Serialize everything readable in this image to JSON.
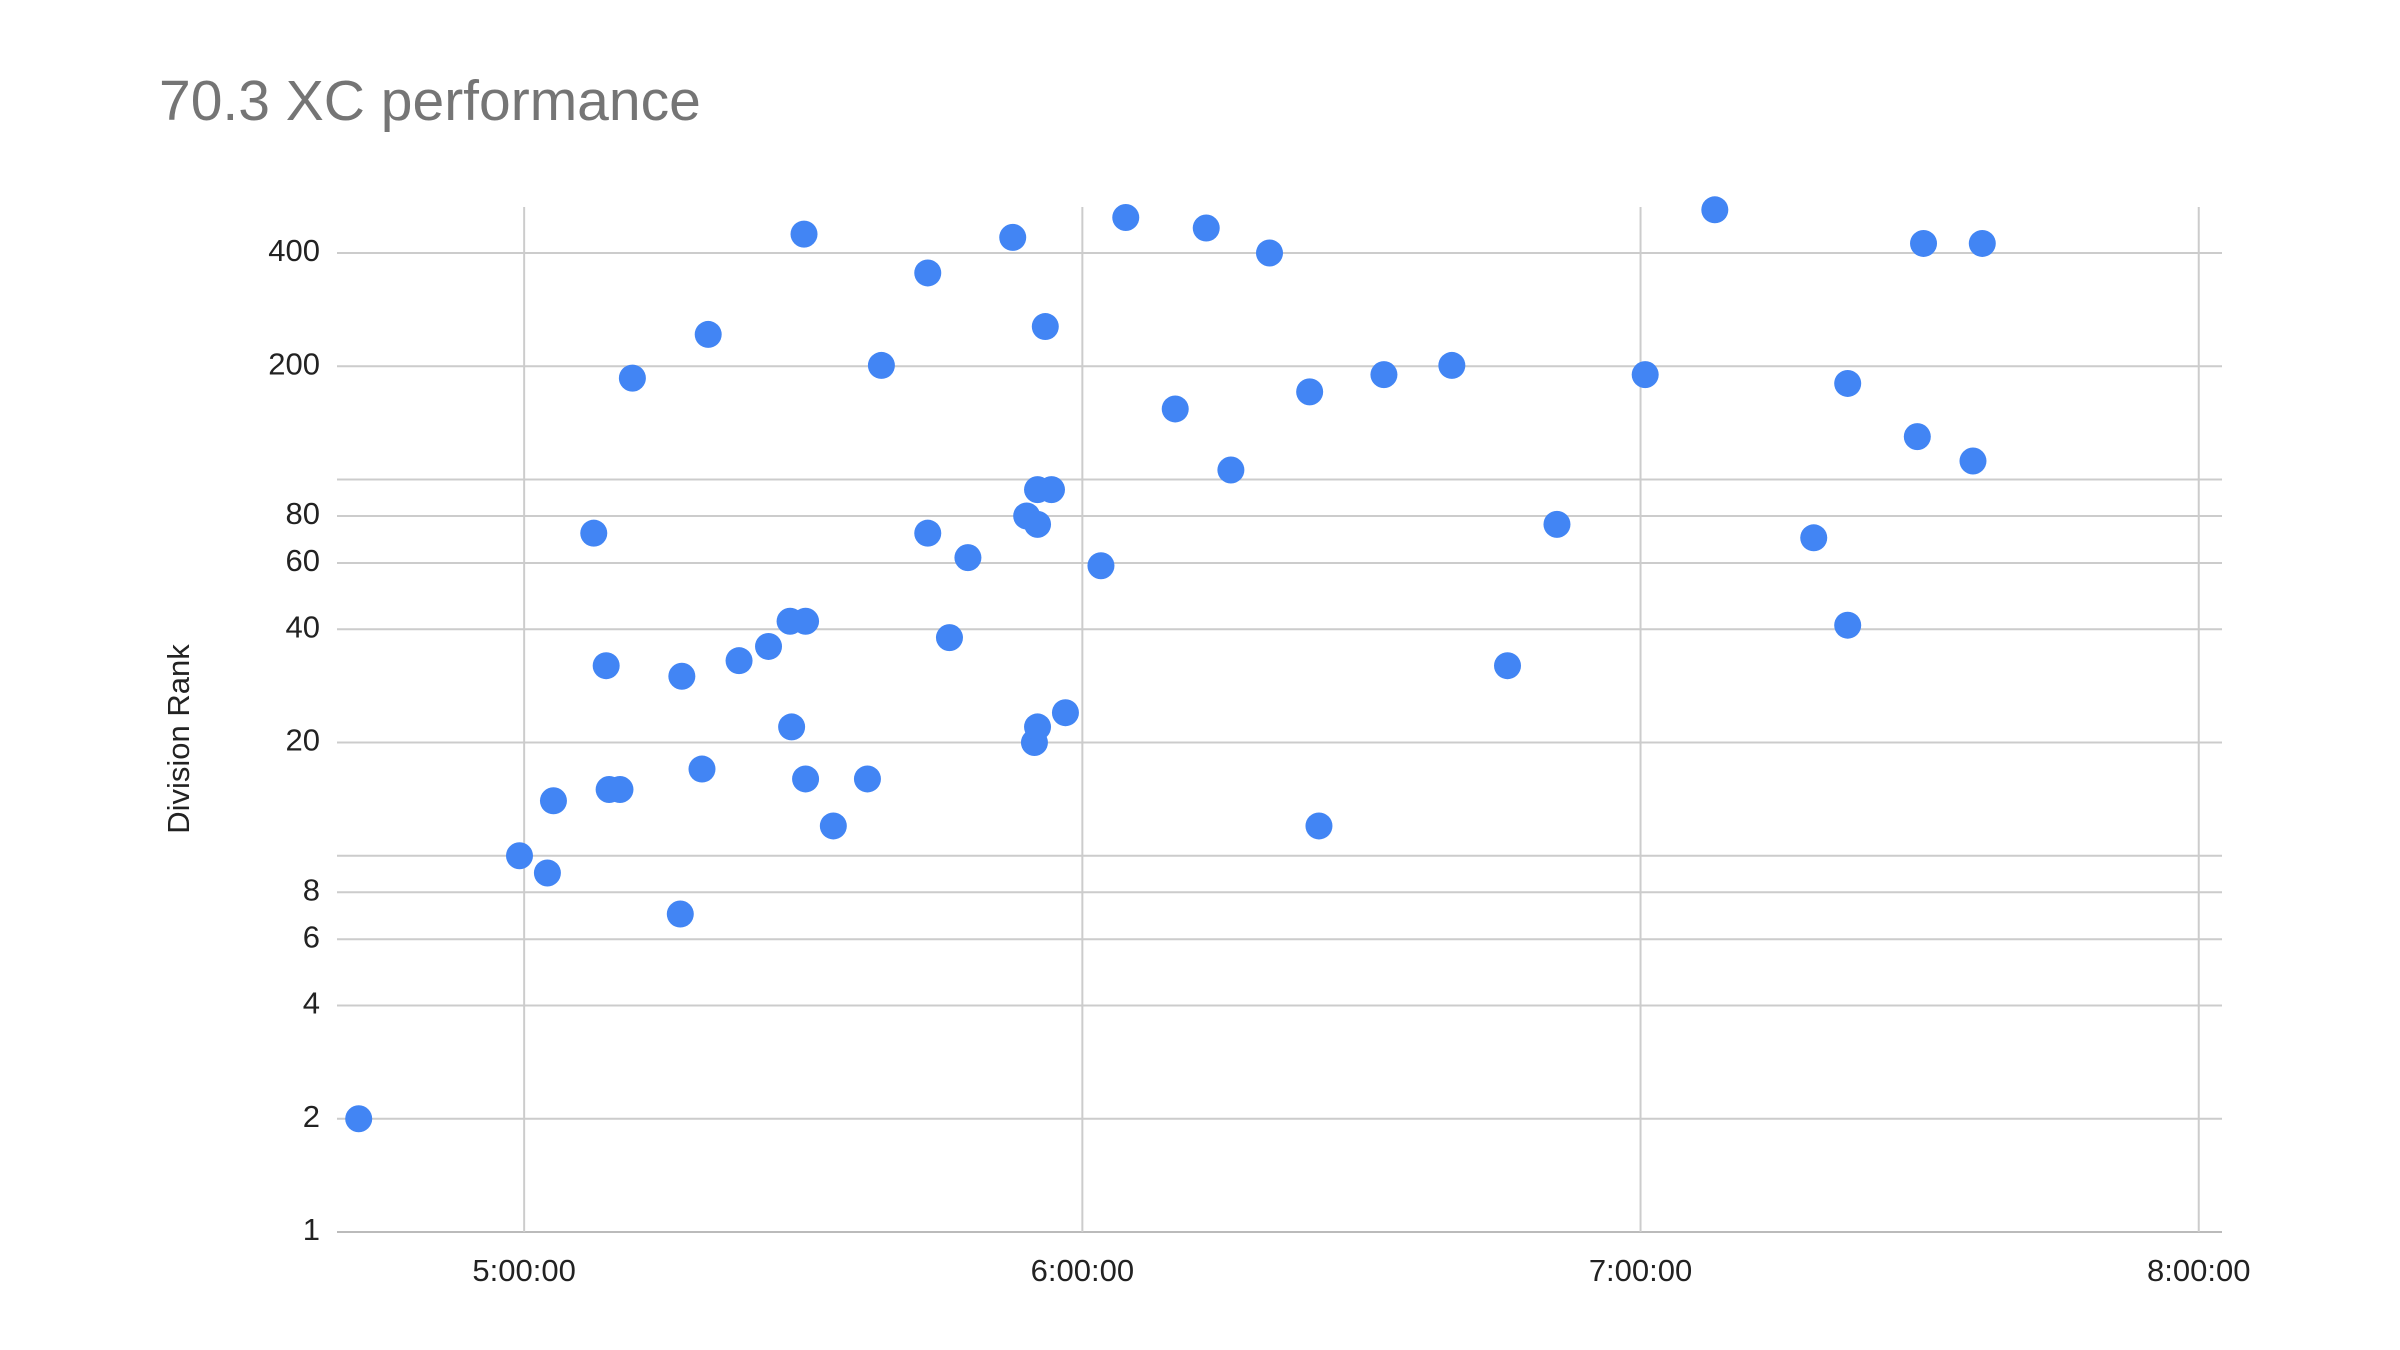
{
  "chart_data": {
    "type": "scatter",
    "title": "70.3 XC performance",
    "y_label": "Division Rank",
    "xlim": [
      16793,
      28950
    ],
    "ylim": [
      1,
      530
    ],
    "y_log": true,
    "grid": true,
    "color": "#4285f4",
    "xticks": [
      {
        "value": 18000,
        "label": "5:00:00"
      },
      {
        "value": 21600,
        "label": "6:00:00"
      },
      {
        "value": 25200,
        "label": "7:00:00"
      },
      {
        "value": 28800,
        "label": "8:00:00"
      }
    ],
    "yticks": [
      1,
      2,
      4,
      6,
      8,
      20,
      40,
      60,
      80,
      200,
      400
    ],
    "y_unlabeled_gridlines": [
      10,
      100
    ],
    "x": [
      16933,
      17970,
      18150,
      18189,
      18449,
      18529,
      18548,
      18618,
      18698,
      19007,
      19017,
      19147,
      19187,
      19386,
      19576,
      19715,
      19725,
      19805,
      19815,
      19815,
      19994,
      20214,
      20304,
      20603,
      20603,
      20743,
      20862,
      21151,
      21241,
      21291,
      21311,
      21311,
      21311,
      21401,
      21361,
      21491,
      21720,
      21880,
      22199,
      22399,
      22558,
      22807,
      23066,
      23126,
      23545,
      23983,
      24342,
      24661,
      25230,
      25679,
      26317,
      26536,
      26536,
      26985,
      27025,
      27344,
      27404
    ],
    "values": [
      2,
      10,
      9,
      14,
      72,
      32,
      15,
      15,
      186,
      7,
      30,
      17,
      243,
      33,
      36,
      42,
      22,
      449,
      42,
      16,
      12,
      16,
      201,
      354,
      72,
      38,
      62,
      440,
      80,
      20,
      76,
      22,
      94,
      94,
      255,
      24,
      59,
      497,
      154,
      466,
      106,
      400,
      171,
      12,
      190,
      201,
      32,
      76,
      190,
      521,
      70,
      180,
      41,
      130,
      424,
      112,
      424
    ]
  }
}
